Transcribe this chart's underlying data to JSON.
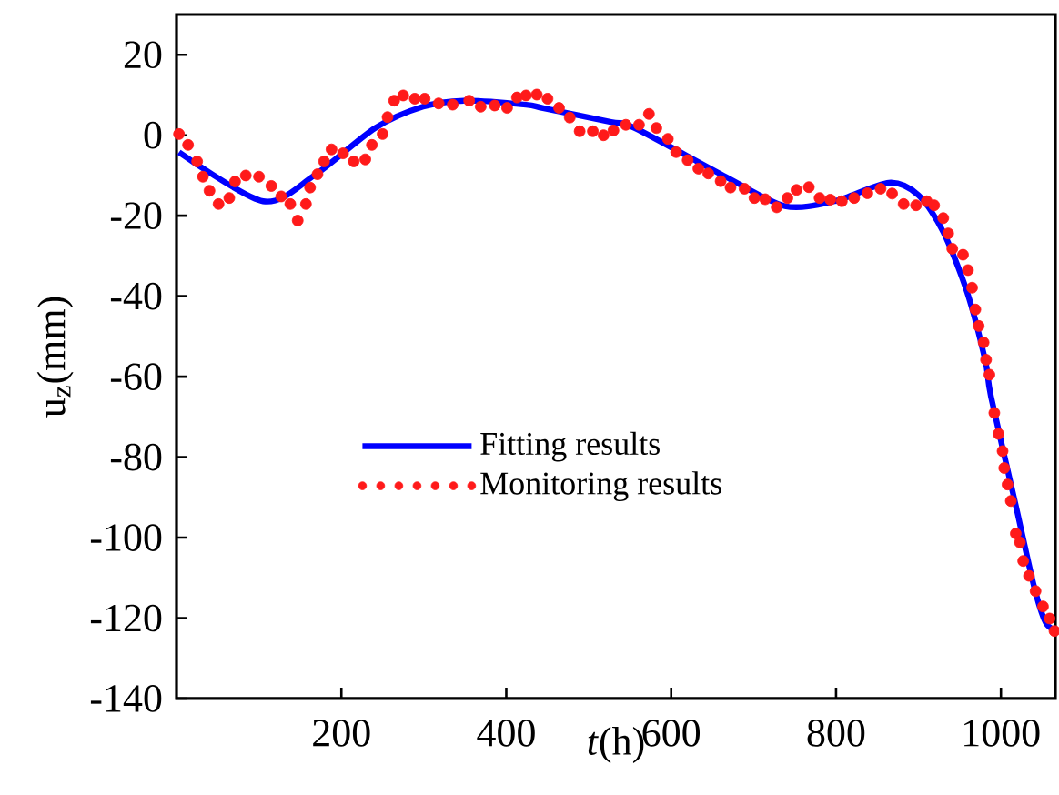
{
  "chart_data": {
    "type": "line",
    "xlabel": "*t*(h)",
    "ylabel": "u$_{z}$(mm)",
    "xlim": [
      0,
      1066
    ],
    "ylim": [
      -140,
      30
    ],
    "xticks": [
      200,
      400,
      600,
      800,
      1000
    ],
    "yticks": [
      -140,
      -120,
      -100,
      -80,
      -60,
      -40,
      -20,
      0,
      20
    ],
    "grid": false,
    "legend": "left",
    "series": [
      {
        "name": "Fitting results",
        "color": "#0000ff",
        "line_style": "solid",
        "marker": "none",
        "x": [
          3,
          105,
          167,
          241,
          299,
          351,
          424,
          446,
          527,
          556,
          666,
          738,
          798,
          864,
          900,
          930,
          959,
          981,
          988,
          1018,
          1040,
          1054,
          1066
        ],
        "values": [
          -4.2,
          -16.4,
          -10,
          1.8,
          7.1,
          8.6,
          7.6,
          6.7,
          3.3,
          1.8,
          -10.3,
          -17.6,
          -16.4,
          -11.8,
          -14.9,
          -24,
          -39,
          -56,
          -65,
          -92,
          -112,
          -121,
          -123
        ]
      },
      {
        "name": "Monitoring results",
        "type": "scatter",
        "color": "#ff1a1a",
        "marker": "circle",
        "x": [
          3,
          14,
          25,
          32,
          40,
          51,
          64,
          71,
          84,
          100,
          115,
          127,
          138,
          147,
          157,
          162,
          171,
          179,
          188,
          202,
          215,
          229,
          237,
          250,
          256,
          264,
          275,
          289,
          301,
          318,
          335,
          355,
          369,
          386,
          401,
          413,
          424,
          437,
          450,
          464,
          477,
          489,
          505,
          518,
          530,
          545,
          561,
          573,
          582,
          596,
          606,
          620,
          633,
          645,
          660,
          672,
          689,
          701,
          714,
          728,
          741,
          752,
          767,
          780,
          793,
          807,
          822,
          838,
          854,
          868,
          882,
          897,
          910,
          919,
          930,
          936,
          941,
          954,
          960,
          965,
          969,
          973,
          979,
          982,
          986,
          992,
          997,
          1002,
          1004,
          1008,
          1012,
          1018,
          1023,
          1027,
          1034,
          1042,
          1051,
          1059,
          1065
        ],
        "values": [
          0.3,
          -2.4,
          -6.5,
          -10.3,
          -13.8,
          -17.1,
          -15.6,
          -11.5,
          -10,
          -10.3,
          -12.6,
          -15.2,
          -17.1,
          -21.2,
          -17.1,
          -13,
          -9.7,
          -6.5,
          -3.5,
          -4.5,
          -6.5,
          -6,
          -2.4,
          0.3,
          4.5,
          8.6,
          9.9,
          9.1,
          9.1,
          7.9,
          7.6,
          8.6,
          7.1,
          7.4,
          6.8,
          9.4,
          9.9,
          10.1,
          9.1,
          6.8,
          4.4,
          1,
          1,
          0,
          1.2,
          2.6,
          2.6,
          5.3,
          1.8,
          -0.9,
          -4.2,
          -6.2,
          -8.3,
          -9.5,
          -11.4,
          -13,
          -13.3,
          -15.6,
          -15.9,
          -17.9,
          -15.6,
          -13.6,
          -12.9,
          -15.6,
          -16,
          -16.4,
          -15.6,
          -14.4,
          -13.3,
          -14.5,
          -17.1,
          -17.4,
          -16.4,
          -17.4,
          -20.6,
          -24.4,
          -28.2,
          -29.7,
          -33.5,
          -37.9,
          -43.3,
          -47.4,
          -51.5,
          -55.8,
          -59.5,
          -69,
          -74.2,
          -78.5,
          -82.7,
          -86.8,
          -90.9,
          -99,
          -101.2,
          -105.8,
          -109.5,
          -113.3,
          -117.1,
          -120.1,
          -123.2
        ]
      }
    ]
  }
}
